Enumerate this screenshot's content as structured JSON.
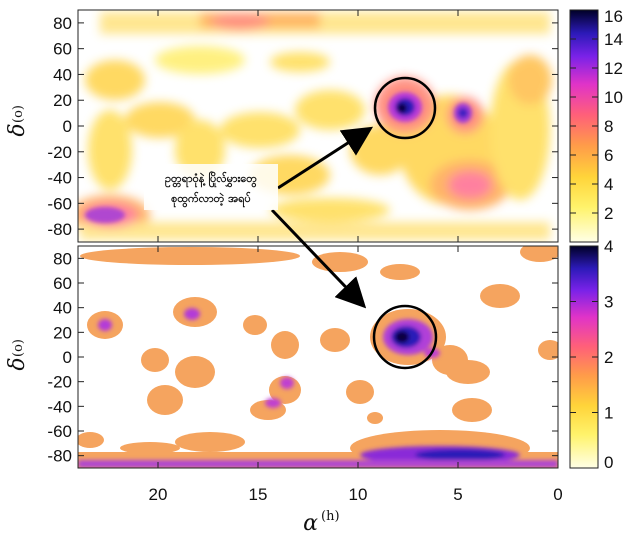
{
  "chart_data": [
    {
      "type": "heatmap",
      "panel": "top",
      "x_axis": {
        "label": "α",
        "unit": "h",
        "range": [
          24,
          0
        ],
        "ticks": [
          20,
          15,
          10,
          5,
          0
        ]
      },
      "y_axis": {
        "label": "δ",
        "unit": "o",
        "range": [
          -90,
          90
        ],
        "ticks": [
          80,
          60,
          40,
          20,
          0,
          -20,
          -40,
          -60,
          -80
        ]
      },
      "colorbar": {
        "range": [
          0,
          16
        ],
        "ticks": [
          2,
          4,
          6,
          8,
          10,
          12,
          14,
          16
        ]
      },
      "hotspots": [
        {
          "ra": 7.6,
          "dec": 15,
          "value": 15
        },
        {
          "ra": 4.5,
          "dec": 10,
          "value": 9
        },
        {
          "ra": 22.5,
          "dec": -70,
          "value": 9
        },
        {
          "ra": 5.5,
          "dec": -40,
          "value": 6
        },
        {
          "ra": 18.0,
          "dec": 85,
          "value": 5
        }
      ]
    },
    {
      "type": "heatmap",
      "panel": "bottom",
      "x_axis": {
        "label": "α",
        "unit": "h",
        "range": [
          24,
          0
        ],
        "ticks": [
          20,
          15,
          10,
          5,
          0
        ]
      },
      "y_axis": {
        "label": "δ",
        "unit": "o",
        "range": [
          -90,
          90
        ],
        "ticks": [
          80,
          60,
          40,
          20,
          0,
          -20,
          -40,
          -60,
          -80
        ]
      },
      "colorbar": {
        "range": [
          0,
          4
        ],
        "ticks": [
          0,
          1,
          2,
          3,
          4
        ]
      },
      "hotspots": [
        {
          "ra": 7.6,
          "dec": 15,
          "value": 4
        },
        {
          "ra": 22.5,
          "dec": 28,
          "value": 2.2
        },
        {
          "ra": 17.5,
          "dec": 35,
          "value": 2.2
        },
        {
          "ra": 16.5,
          "dec": -25,
          "value": 2.2
        },
        {
          "ra": 6.0,
          "dec": 0,
          "value": 2.0
        },
        {
          "ra": 4.0,
          "dec": -83,
          "value": 3.5
        }
      ]
    }
  ],
  "annotation": {
    "line1": "ဥတ္တရာဝုံနဲ့ ပြိုလ်မွှားတွေ",
    "line2": "စုထွက်လာတဲ့ အရပ်"
  },
  "colors": {
    "low": "#ffffe0",
    "mid": "#ff6b7a",
    "high": "#000033",
    "mask": "#f5a45f"
  }
}
